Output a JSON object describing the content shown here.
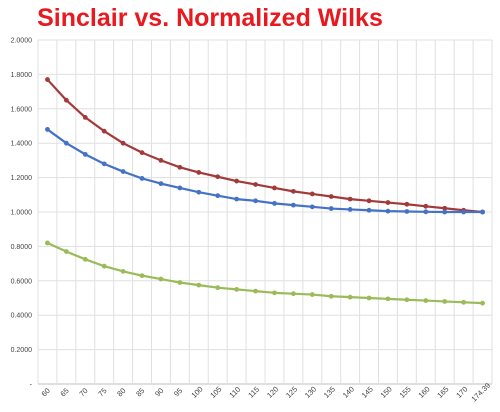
{
  "chart_data": {
    "type": "line",
    "title": "Sinclair vs. Normalized Wilks",
    "xlabel": "",
    "ylabel": "",
    "categories": [
      "60",
      "65",
      "70",
      "75",
      "80",
      "85",
      "90",
      "95",
      "100",
      "105",
      "110",
      "115",
      "120",
      "125",
      "130",
      "135",
      "140",
      "145",
      "150",
      "155",
      "160",
      "165",
      "170",
      "174.39"
    ],
    "y_tick_labels": [
      "-",
      "0.2000",
      "0.4000",
      "0.6000",
      "0.8000",
      "1.0000",
      "1.2000",
      "1.4000",
      "1.6000",
      "1.8000",
      "2.0000"
    ],
    "ylim": [
      0,
      2.0
    ],
    "grid": true,
    "legend": "none",
    "series": [
      {
        "color": "#a33a3a",
        "values": [
          1.77,
          1.65,
          1.55,
          1.47,
          1.4,
          1.345,
          1.3,
          1.26,
          1.23,
          1.205,
          1.18,
          1.16,
          1.14,
          1.12,
          1.105,
          1.09,
          1.075,
          1.065,
          1.055,
          1.045,
          1.033,
          1.022,
          1.01,
          1.0
        ]
      },
      {
        "color": "#4472c4",
        "values": [
          1.48,
          1.4,
          1.335,
          1.28,
          1.235,
          1.195,
          1.165,
          1.14,
          1.115,
          1.095,
          1.075,
          1.065,
          1.05,
          1.04,
          1.03,
          1.02,
          1.015,
          1.01,
          1.005,
          1.003,
          1.001,
          1.0,
          1.0,
          1.0
        ]
      },
      {
        "color": "#9bbb59",
        "values": [
          0.82,
          0.77,
          0.725,
          0.685,
          0.655,
          0.63,
          0.61,
          0.59,
          0.575,
          0.56,
          0.55,
          0.54,
          0.53,
          0.525,
          0.52,
          0.51,
          0.505,
          0.5,
          0.495,
          0.49,
          0.485,
          0.48,
          0.475,
          0.47
        ]
      }
    ]
  }
}
